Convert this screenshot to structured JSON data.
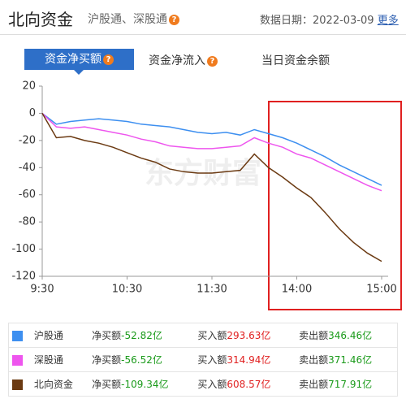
{
  "header": {
    "title": "北向资金",
    "subtitle": "沪股通、深股通",
    "date_label": "数据日期：",
    "date": "2022-03-09",
    "more": "更多"
  },
  "tabs": [
    "资金净买额",
    "资金净流入",
    "当日资金余额"
  ],
  "watermark": "东方财富",
  "chart_data": {
    "type": "line",
    "categories": [
      "9:30",
      null,
      null,
      null,
      null,
      null,
      "10:30",
      null,
      null,
      null,
      null,
      null,
      "11:30",
      null,
      null,
      null,
      null,
      null,
      "14:00",
      null,
      null,
      null,
      null,
      null,
      "15:00"
    ],
    "ylim": [
      -120,
      20
    ],
    "yticks": [
      20,
      0,
      -20,
      -40,
      -60,
      -80,
      -100,
      -120
    ],
    "series": [
      {
        "name": "沪股通",
        "color": "#3d8ff0",
        "values": [
          0,
          -8,
          -6,
          -5,
          -4,
          -5,
          -6,
          -8,
          -9,
          -10,
          -12,
          -14,
          -15,
          -14,
          -16,
          -12,
          -15,
          -18,
          -22,
          -27,
          -32,
          -38,
          -43,
          -48,
          -53
        ]
      },
      {
        "name": "深股通",
        "color": "#ee55ee",
        "values": [
          0,
          -10,
          -11,
          -10,
          -12,
          -14,
          -16,
          -19,
          -21,
          -24,
          -25,
          -26,
          -26,
          -25,
          -24,
          -18,
          -22,
          -25,
          -30,
          -33,
          -38,
          -43,
          -48,
          -53,
          -57
        ]
      },
      {
        "name": "北向资金",
        "color": "#6b3a12",
        "values": [
          0,
          -18,
          -17,
          -20,
          -22,
          -25,
          -29,
          -33,
          -36,
          -41,
          -43,
          -44,
          -44,
          -43,
          -42,
          -30,
          -40,
          -47,
          -55,
          -62,
          -73,
          -85,
          -95,
          -103,
          -109
        ]
      }
    ]
  },
  "summary": {
    "net_label": "净买额",
    "buy_label": "买入额",
    "sell_label": "卖出额",
    "rows": [
      [
        "-52.82亿",
        "293.63亿",
        "346.46亿"
      ],
      [
        "-56.52亿",
        "314.94亿",
        "371.46亿"
      ],
      [
        "-109.34亿",
        "608.57亿",
        "717.91亿"
      ]
    ]
  }
}
